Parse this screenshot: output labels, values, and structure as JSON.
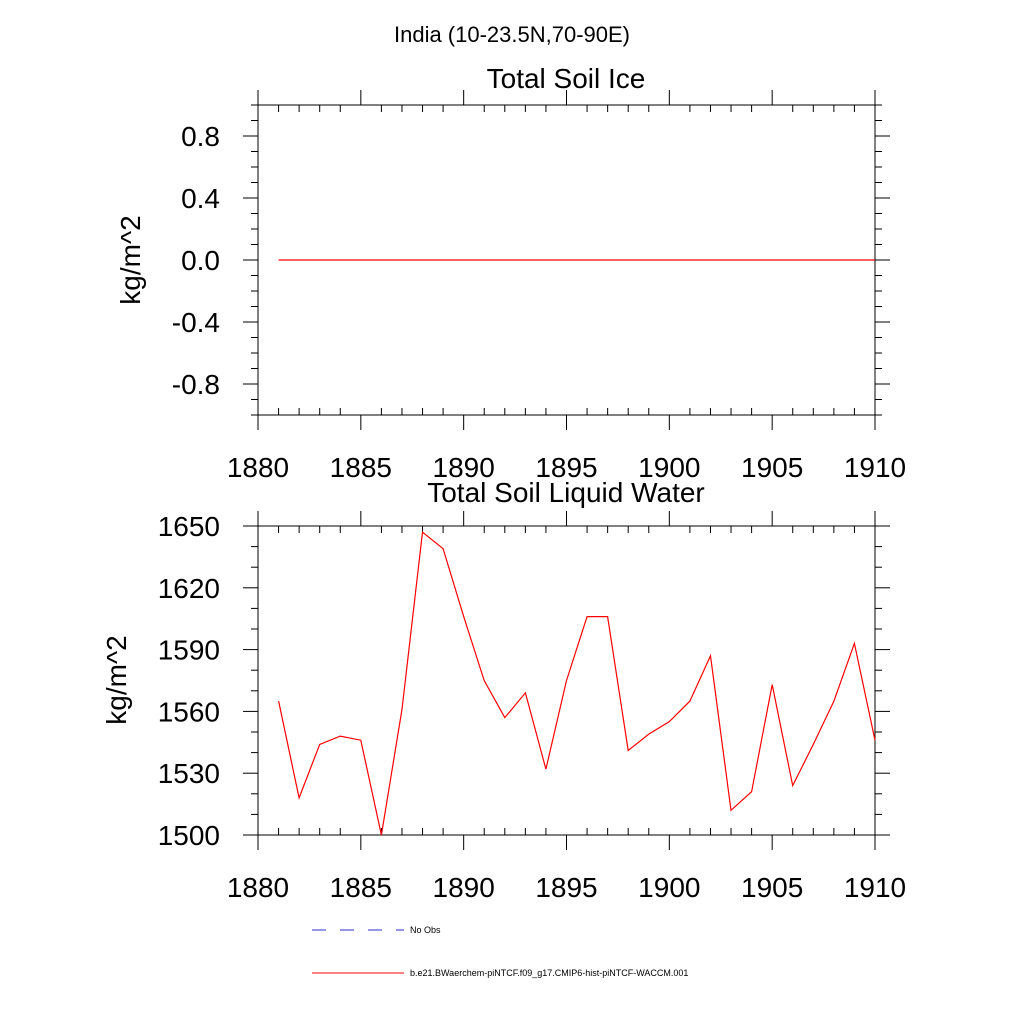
{
  "figure_title": "India (10-23.5N,70-90E)",
  "legend": [
    {
      "label": "No Obs",
      "color": "#2b2bd6",
      "style": "dashed"
    },
    {
      "label": "b.e21.BWaerchem-piNTCF.f09_g17.CMIP6-hist-piNTCF-WACCM.001",
      "color": "#ff0000",
      "style": "solid"
    }
  ],
  "chart_data": [
    {
      "type": "line",
      "title": "Total Soil Ice",
      "xlabel": "",
      "ylabel": "kg/m^2",
      "xlim": [
        1880,
        1910
      ],
      "ylim": [
        -1.0,
        1.0
      ],
      "xticks": [
        1880,
        1885,
        1890,
        1895,
        1900,
        1905,
        1910
      ],
      "yticks": [
        -0.8,
        -0.4,
        0.0,
        0.4,
        0.8
      ],
      "ytick_labels": [
        "-0.8",
        "-0.4",
        "0.0",
        "0.4",
        "0.8"
      ],
      "x_minor_step": 1,
      "y_minor_step": 0.1,
      "grid": false,
      "series": [
        {
          "name": "b.e21.BWaerchem-piNTCF.f09_g17.CMIP6-hist-piNTCF-WACCM.001",
          "color": "#ff0000",
          "x": [
            1881,
            1882,
            1883,
            1884,
            1885,
            1886,
            1887,
            1888,
            1889,
            1890,
            1891,
            1892,
            1893,
            1894,
            1895,
            1896,
            1897,
            1898,
            1899,
            1900,
            1901,
            1902,
            1903,
            1904,
            1905,
            1906,
            1907,
            1908,
            1909,
            1910
          ],
          "values": [
            0,
            0,
            0,
            0,
            0,
            0,
            0,
            0,
            0,
            0,
            0,
            0,
            0,
            0,
            0,
            0,
            0,
            0,
            0,
            0,
            0,
            0,
            0,
            0,
            0,
            0,
            0,
            0,
            0,
            0
          ]
        }
      ]
    },
    {
      "type": "line",
      "title": "Total Soil Liquid Water",
      "xlabel": "",
      "ylabel": "kg/m^2",
      "xlim": [
        1880,
        1910
      ],
      "ylim": [
        1500,
        1650
      ],
      "xticks": [
        1880,
        1885,
        1890,
        1895,
        1900,
        1905,
        1910
      ],
      "yticks": [
        1500,
        1530,
        1560,
        1590,
        1620,
        1650
      ],
      "ytick_labels": [
        "1500",
        "1530",
        "1560",
        "1590",
        "1620",
        "1650"
      ],
      "x_minor_step": 1,
      "y_minor_step": 10,
      "grid": false,
      "series": [
        {
          "name": "b.e21.BWaerchem-piNTCF.f09_g17.CMIP6-hist-piNTCF-WACCM.001",
          "color": "#ff0000",
          "x": [
            1881,
            1882,
            1883,
            1884,
            1885,
            1886,
            1887,
            1888,
            1889,
            1890,
            1891,
            1892,
            1893,
            1894,
            1895,
            1896,
            1897,
            1898,
            1899,
            1900,
            1901,
            1902,
            1903,
            1904,
            1905,
            1906,
            1907,
            1908,
            1909,
            1910
          ],
          "values": [
            1565,
            1518,
            1544,
            1548,
            1546,
            1500,
            1561,
            1647,
            1639,
            1606,
            1575,
            1557,
            1569,
            1532,
            1575,
            1606,
            1606,
            1541,
            1549,
            1555,
            1565,
            1587,
            1512,
            1521,
            1573,
            1524,
            1544,
            1565,
            1593,
            1546
          ]
        }
      ]
    }
  ]
}
